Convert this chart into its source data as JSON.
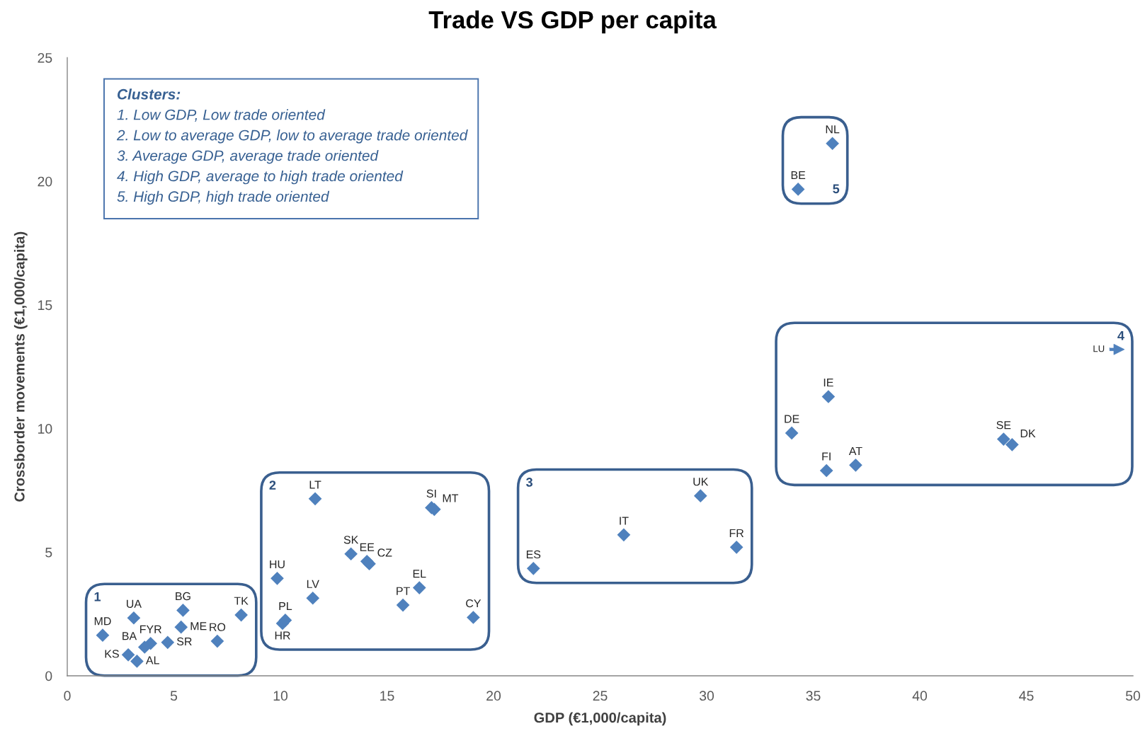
{
  "chart_data": {
    "type": "scatter",
    "title": "Trade VS GDP per capita",
    "xlabel": "GDP (€1,000/capita)",
    "ylabel": "Crossborder movements (€1,000/capita)",
    "xlim": [
      0,
      50
    ],
    "ylim": [
      0,
      25
    ],
    "xticks": [
      0,
      5,
      10,
      15,
      20,
      25,
      30,
      35,
      40,
      45,
      50
    ],
    "yticks": [
      0,
      5,
      10,
      15,
      20,
      25
    ],
    "marker": "diamond",
    "series": [
      {
        "color": "#4f81bd",
        "x": [
          1.66,
          3.12,
          5.43,
          5.34,
          8.16,
          7.04,
          4.71,
          3.91,
          3.63,
          2.86,
          3.27
        ],
        "values": [
          1.64,
          2.34,
          2.65,
          1.97,
          2.46,
          1.4,
          1.35,
          1.31,
          1.16,
          0.85,
          0.59
        ],
        "value_labels": [
          "MD",
          "UA",
          "BG",
          "ME",
          "TK",
          "RO",
          "SR",
          "FYR",
          "BA",
          "KS",
          "AL"
        ]
      },
      {
        "color": "#4f81bd",
        "x": [
          11.63,
          17.09,
          17.22,
          13.31,
          14.06,
          14.17,
          9.85,
          11.52,
          16.52,
          15.75,
          19.05,
          10.1,
          10.23
        ],
        "values": [
          7.16,
          6.8,
          6.73,
          4.93,
          4.63,
          4.53,
          3.94,
          3.14,
          3.56,
          2.86,
          2.36,
          2.12,
          2.25
        ],
        "value_labels": [
          "LT",
          "SI",
          "MT",
          "SK",
          "EE",
          "CZ",
          "HU",
          "LV",
          "EL",
          "PT",
          "CY",
          "HR",
          "PL"
        ]
      },
      {
        "color": "#4f81bd",
        "x": [
          21.87,
          26.11,
          29.71,
          31.4
        ],
        "values": [
          4.34,
          5.7,
          7.28,
          5.2
        ],
        "value_labels": [
          "ES",
          "IT",
          "UK",
          "FR"
        ]
      },
      {
        "color": "#4f81bd",
        "x": [
          33.99,
          35.71,
          35.62,
          36.99,
          43.93,
          44.33
        ],
        "values": [
          9.82,
          11.29,
          8.3,
          8.52,
          9.57,
          9.35
        ],
        "value_labels": [
          "DE",
          "IE",
          "FI",
          "AT",
          "SE",
          "DK"
        ]
      },
      {
        "color": "#4f81bd",
        "x": [
          34.29,
          35.9
        ],
        "values": [
          19.68,
          21.53
        ],
        "value_labels": [
          "BE",
          "NL"
        ]
      }
    ],
    "annotations": [
      "Clusters:",
      "1. Low GDP, Low trade oriented",
      "2. Low to average GDP, low to average trade oriented",
      "3. Average GDP, average trade oriented",
      "4. High GDP, average to high trade oriented",
      "5. High GDP, high trade oriented",
      "LU",
      "1",
      "2",
      "3",
      "4",
      "5"
    ]
  }
}
